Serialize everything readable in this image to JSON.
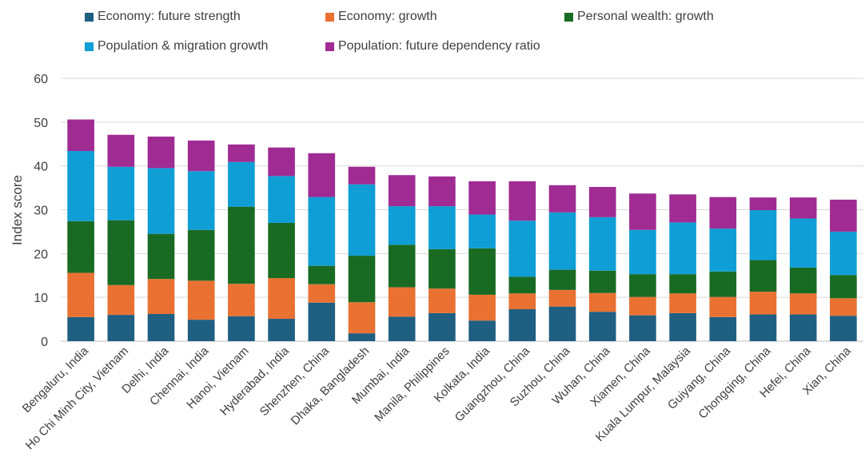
{
  "chart_data": {
    "type": "bar",
    "stacked": true,
    "ylabel": "Index score",
    "ylim": [
      0,
      60
    ],
    "yticks": [
      0,
      10,
      20,
      30,
      40,
      50,
      60
    ],
    "grid": true,
    "legend_position": "top",
    "categories": [
      "Bengaluru, India",
      "Ho Chi Minh City, Vietnam",
      "Delhi, India",
      "Chennai, India",
      "Hanoi, Vietnam",
      "Hyderabad, India",
      "Shenzhen, China",
      "Dhaka, Bangladesh",
      "Mumbai, India",
      "Manila, Philippines",
      "Kolkata, India",
      "Guangzhou, China",
      "Suzhou, China",
      "Wuhan, China",
      "Xiamen, China",
      "Kuala Lumpur, Malaysia",
      "Guiyang, China",
      "Chongqing, China",
      "Hefei, China",
      "Xian, China"
    ],
    "series": [
      {
        "name": "Economy: future strength",
        "color": "#1f5f82",
        "values": [
          5.5,
          6.0,
          6.2,
          4.9,
          5.7,
          5.1,
          8.8,
          1.8,
          5.6,
          6.4,
          4.7,
          7.3,
          7.9,
          6.7,
          5.9,
          6.4,
          5.5,
          6.1,
          6.1,
          5.8
        ]
      },
      {
        "name": "Economy: growth",
        "color": "#e97132",
        "values": [
          10.1,
          6.8,
          8.0,
          8.9,
          7.4,
          9.3,
          4.2,
          7.1,
          6.7,
          5.6,
          5.9,
          3.6,
          3.8,
          4.3,
          4.2,
          4.5,
          4.6,
          5.2,
          4.8,
          4.0
        ]
      },
      {
        "name": "Personal wealth: growth",
        "color": "#196b24",
        "values": [
          11.8,
          14.8,
          10.3,
          11.6,
          17.6,
          12.6,
          4.2,
          10.6,
          9.7,
          9.0,
          10.6,
          3.8,
          4.6,
          5.1,
          5.2,
          4.4,
          5.8,
          7.2,
          5.9,
          5.3
        ]
      },
      {
        "name": "Population & migration growth",
        "color": "#0f9ed5",
        "values": [
          16.0,
          12.2,
          15.0,
          13.4,
          10.2,
          10.7,
          15.7,
          16.3,
          8.8,
          9.8,
          7.7,
          12.8,
          13.1,
          12.2,
          10.1,
          11.8,
          9.8,
          11.4,
          11.2,
          9.9
        ]
      },
      {
        "name": "Population: future dependency ratio",
        "color": "#a02b93",
        "values": [
          7.2,
          7.3,
          7.2,
          7.0,
          4.0,
          6.5,
          10.0,
          4.0,
          7.1,
          6.8,
          7.6,
          9.0,
          6.2,
          6.9,
          8.3,
          6.4,
          7.2,
          2.9,
          4.8,
          7.3
        ]
      }
    ]
  }
}
